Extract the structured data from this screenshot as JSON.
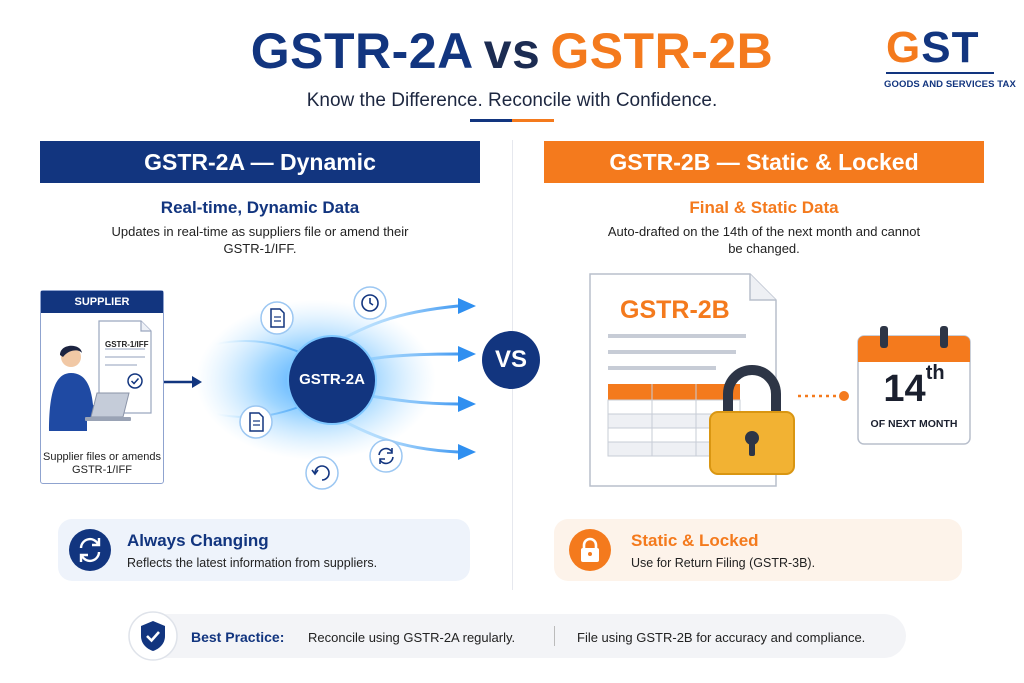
{
  "header": {
    "title_a": "GSTR-2A",
    "title_vs": "vs",
    "title_b": "GSTR-2B",
    "subtitle": "Know the Difference. Reconcile with Confidence."
  },
  "logo": {
    "letter_g": "G",
    "letters_st": "ST",
    "subtitle": "GOODS AND SERVICES TAX"
  },
  "left": {
    "banner": "GSTR-2A — Dynamic",
    "heading": "Real-time, Dynamic Data",
    "description": "Updates in real-time as suppliers file or amend their GSTR-1/IFF.",
    "supplier_tag": "SUPPLIER",
    "supplier_doc_label": "GSTR-1/IFF",
    "supplier_caption": "Supplier files or amends GSTR-1/IFF",
    "hub_label": "GSTR-2A",
    "pill_title": "Always Changing",
    "pill_text": "Reflects the latest information from suppliers."
  },
  "vs_label": "VS",
  "right": {
    "banner": "GSTR-2B — Static & Locked",
    "heading": "Final & Static Data",
    "description": "Auto-drafted on the 14th of the next month and cannot be changed.",
    "doc_title": "GSTR-2B",
    "calendar_day": "14",
    "calendar_suffix": "th",
    "calendar_sub": "OF NEXT MONTH",
    "pill_title": "Static & Locked",
    "pill_text": "Use for Return Filing (GSTR-3B)."
  },
  "best_practice": {
    "label": "Best Practice:",
    "part_a": "Reconcile using GSTR-2A regularly.",
    "part_b": "File using GSTR-2B for accuracy and compliance."
  },
  "colors": {
    "navy": "#12357f",
    "orange": "#f47a1d",
    "lock_gold": "#f2b233"
  },
  "icons": [
    "document-icon",
    "clock-icon",
    "refresh-icon",
    "person-laptop-icon",
    "lock-icon",
    "calendar-icon",
    "shield-check-icon",
    "arrow-right-icon"
  ]
}
